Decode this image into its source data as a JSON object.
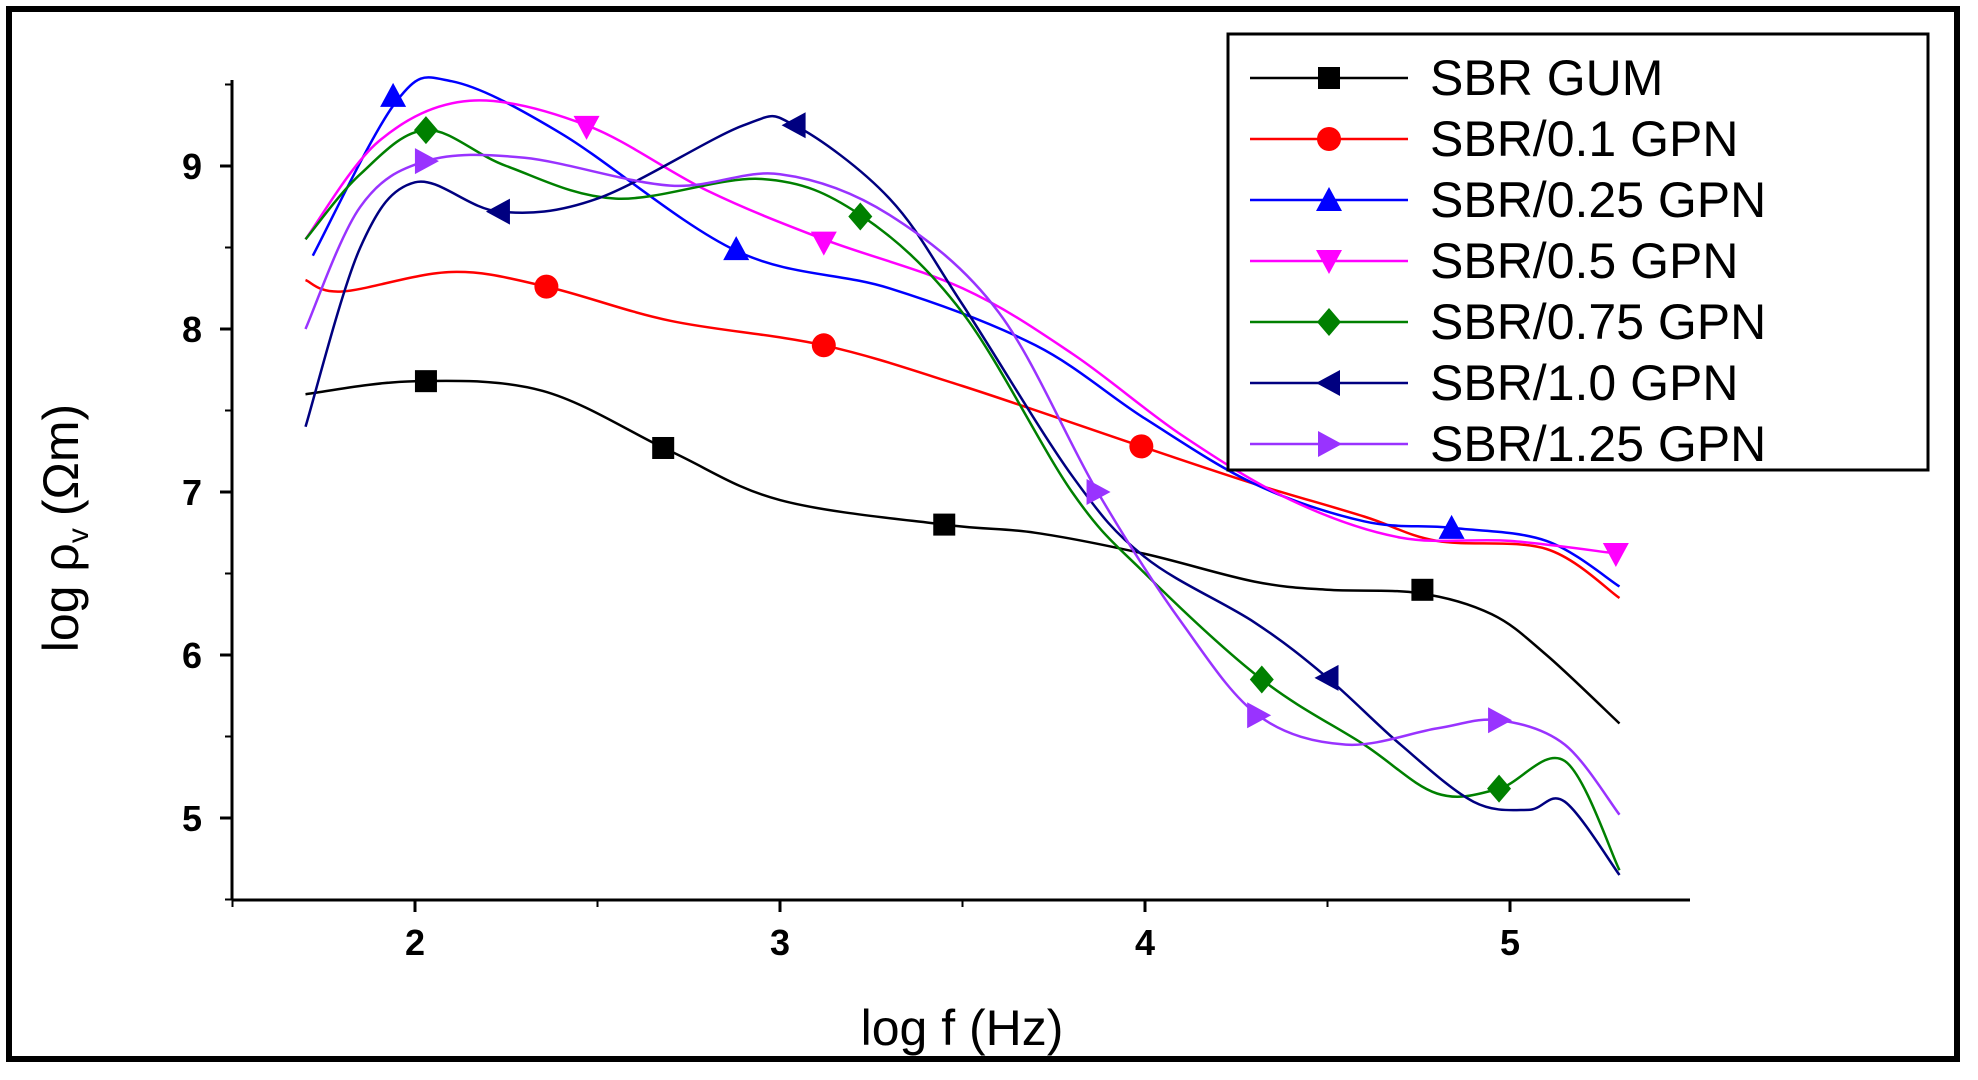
{
  "chart_data": {
    "type": "line",
    "title": "",
    "xlabel": "log f (Hz)",
    "ylabel_main": "log ρ",
    "ylabel_sub": "v",
    "ylabel_unit": "(Ωm)",
    "xlim": [
      1.5,
      5.5
    ],
    "ylim": [
      4.5,
      9.5
    ],
    "xticks": [
      2,
      3,
      4,
      5
    ],
    "yticks": [
      5,
      6,
      7,
      8,
      9
    ],
    "grid": false,
    "legend_position": "top-right",
    "series": [
      {
        "name": "SBR GUM",
        "color": "#000000",
        "marker": "square",
        "x": [
          1.7,
          2.0,
          2.35,
          2.7,
          3.0,
          3.45,
          3.7,
          4.0,
          4.3,
          4.5,
          4.75,
          4.95,
          5.1,
          5.3
        ],
        "y": [
          7.6,
          7.68,
          7.62,
          7.25,
          6.95,
          6.8,
          6.75,
          6.62,
          6.45,
          6.4,
          6.38,
          6.25,
          6.0,
          5.58
        ],
        "marker_x": [
          2.03,
          2.68,
          3.45,
          4.76
        ],
        "marker_y": [
          7.68,
          7.27,
          6.8,
          6.4
        ]
      },
      {
        "name": "SBR/0.1 GPN",
        "color": "#ff0000",
        "marker": "circle",
        "x": [
          1.7,
          1.8,
          2.1,
          2.36,
          2.7,
          3.12,
          3.5,
          3.99,
          4.3,
          4.6,
          4.8,
          5.1,
          5.3
        ],
        "y": [
          8.3,
          8.23,
          8.35,
          8.26,
          8.05,
          7.9,
          7.65,
          7.28,
          7.05,
          6.85,
          6.7,
          6.65,
          6.35
        ],
        "marker_x": [
          2.36,
          3.12,
          3.99
        ],
        "marker_y": [
          8.26,
          7.9,
          7.28
        ]
      },
      {
        "name": "SBR/0.25 GPN",
        "color": "#0000ff",
        "marker": "triangle-up",
        "x": [
          1.72,
          1.95,
          2.1,
          2.4,
          2.88,
          3.3,
          3.7,
          4.0,
          4.3,
          4.6,
          4.84,
          5.1,
          5.3
        ],
        "y": [
          8.45,
          9.4,
          9.52,
          9.2,
          8.48,
          8.25,
          7.9,
          7.45,
          7.05,
          6.82,
          6.78,
          6.7,
          6.42
        ],
        "marker_x": [
          1.94,
          2.88,
          4.84
        ],
        "marker_y": [
          9.43,
          8.49,
          6.78
        ]
      },
      {
        "name": "SBR/0.5 GPN",
        "color": "#ff00ff",
        "marker": "triangle-down",
        "x": [
          1.7,
          1.9,
          2.15,
          2.47,
          2.8,
          3.12,
          3.5,
          3.8,
          4.1,
          4.4,
          4.7,
          5.0,
          5.3
        ],
        "y": [
          8.55,
          9.15,
          9.4,
          9.25,
          8.85,
          8.55,
          8.25,
          7.85,
          7.35,
          6.95,
          6.72,
          6.7,
          6.62
        ],
        "marker_x": [
          2.47,
          3.12,
          5.29
        ],
        "marker_y": [
          9.24,
          8.53,
          6.62
        ]
      },
      {
        "name": "SBR/0.75 GPN",
        "color": "#008000",
        "marker": "diamond",
        "x": [
          1.7,
          1.85,
          2.03,
          2.25,
          2.55,
          2.95,
          3.22,
          3.5,
          3.8,
          4.0,
          4.32,
          4.6,
          4.8,
          4.97,
          5.15,
          5.3
        ],
        "y": [
          8.55,
          8.95,
          9.22,
          9.0,
          8.8,
          8.92,
          8.7,
          8.1,
          7.0,
          6.5,
          5.85,
          5.45,
          5.15,
          5.18,
          5.35,
          4.68
        ],
        "marker_x": [
          2.03,
          3.22,
          4.32,
          4.97
        ],
        "marker_y": [
          9.22,
          8.69,
          5.85,
          5.18
        ]
      },
      {
        "name": "SBR/1.0 GPN",
        "color": "#000080",
        "marker": "triangle-left",
        "x": [
          1.7,
          1.85,
          2.0,
          2.23,
          2.5,
          2.9,
          3.04,
          3.3,
          3.5,
          3.8,
          4.0,
          4.3,
          4.5,
          4.7,
          4.9,
          5.05,
          5.15,
          5.3
        ],
        "y": [
          7.4,
          8.5,
          8.9,
          8.72,
          8.8,
          9.25,
          9.25,
          8.8,
          8.15,
          7.1,
          6.6,
          6.2,
          5.86,
          5.45,
          5.1,
          5.05,
          5.1,
          4.65
        ],
        "marker_x": [
          2.23,
          3.04,
          4.5
        ],
        "marker_y": [
          8.72,
          9.25,
          5.86
        ]
      },
      {
        "name": "SBR/1.25 GPN",
        "color": "#9933ff",
        "marker": "triangle-right",
        "x": [
          1.7,
          1.85,
          2.03,
          2.3,
          2.7,
          3.0,
          3.3,
          3.6,
          3.87,
          4.1,
          4.31,
          4.55,
          4.8,
          4.97,
          5.15,
          5.3
        ],
        "y": [
          8.0,
          8.75,
          9.03,
          9.05,
          8.88,
          8.95,
          8.7,
          8.1,
          7.0,
          6.2,
          5.63,
          5.45,
          5.55,
          5.6,
          5.45,
          5.02
        ],
        "marker_x": [
          2.03,
          3.87,
          4.31,
          4.97
        ],
        "marker_y": [
          9.03,
          7.0,
          5.63,
          5.6
        ]
      }
    ]
  }
}
